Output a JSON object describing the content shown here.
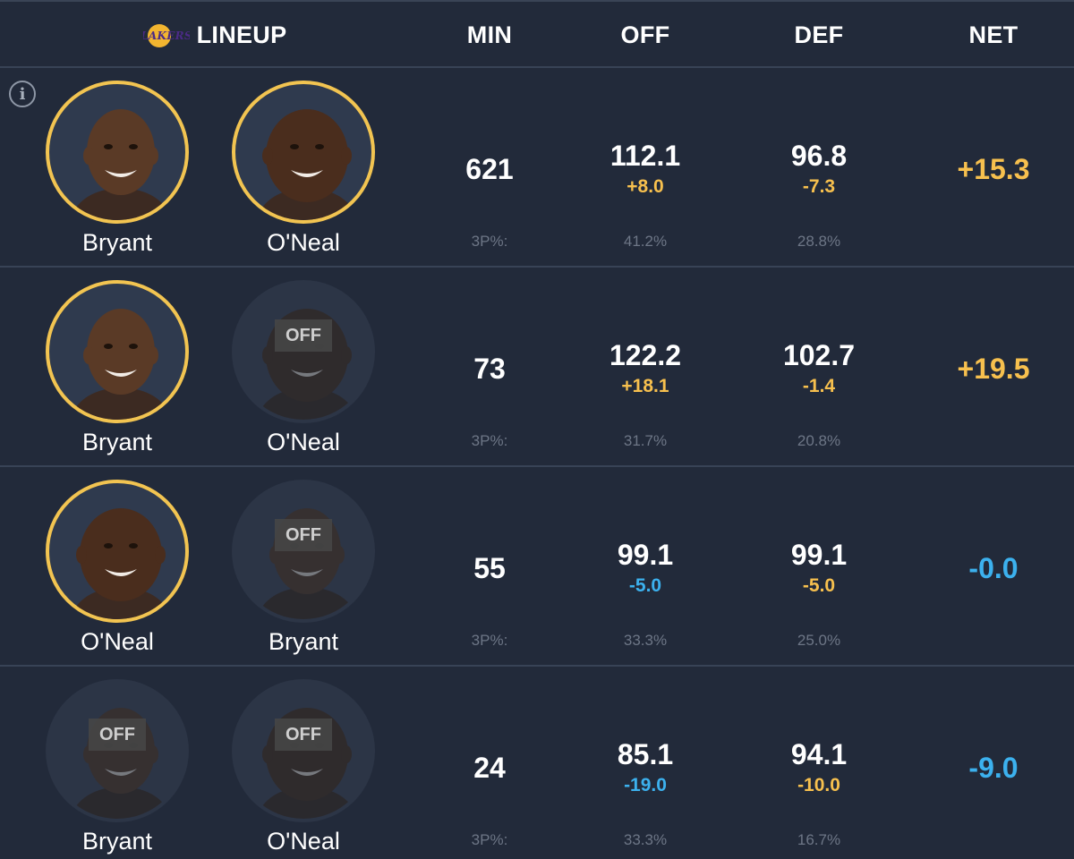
{
  "header": {
    "lineup_label": "LINEUP",
    "min_label": "MIN",
    "off_label": "OFF",
    "def_label": "DEF",
    "net_label": "NET",
    "logo_icon": "lakers-logo-icon"
  },
  "colors": {
    "on_ring": "#f2c451",
    "positive": "#f7c04e",
    "negative": "#3cb1ee",
    "background": "#222a3a"
  },
  "info_icon_glyph": "i",
  "pct_label": "3P%:",
  "rows": [
    {
      "players": [
        {
          "name": "Bryant",
          "status": "on"
        },
        {
          "name": "O'Neal",
          "status": "on"
        }
      ],
      "min": "621",
      "off": {
        "value": "112.1",
        "delta": "+8.0",
        "pct": "41.2%"
      },
      "def": {
        "value": "96.8",
        "delta": "-7.3",
        "pct": "28.8%"
      },
      "net": "+15.3"
    },
    {
      "players": [
        {
          "name": "Bryant",
          "status": "on"
        },
        {
          "name": "O'Neal",
          "status": "off",
          "off_label": "OFF"
        }
      ],
      "min": "73",
      "off": {
        "value": "122.2",
        "delta": "+18.1",
        "pct": "31.7%"
      },
      "def": {
        "value": "102.7",
        "delta": "-1.4",
        "pct": "20.8%"
      },
      "net": "+19.5"
    },
    {
      "players": [
        {
          "name": "O'Neal",
          "status": "on"
        },
        {
          "name": "Bryant",
          "status": "off",
          "off_label": "OFF"
        }
      ],
      "min": "55",
      "off": {
        "value": "99.1",
        "delta": "-5.0",
        "pct": "33.3%"
      },
      "def": {
        "value": "99.1",
        "delta": "-5.0",
        "pct": "25.0%"
      },
      "net": "-0.0"
    },
    {
      "players": [
        {
          "name": "Bryant",
          "status": "off",
          "off_label": "OFF"
        },
        {
          "name": "O'Neal",
          "status": "off",
          "off_label": "OFF"
        }
      ],
      "min": "24",
      "off": {
        "value": "85.1",
        "delta": "-19.0",
        "pct": "33.3%"
      },
      "def": {
        "value": "94.1",
        "delta": "-10.0",
        "pct": "16.7%"
      },
      "net": "-9.0"
    }
  ]
}
